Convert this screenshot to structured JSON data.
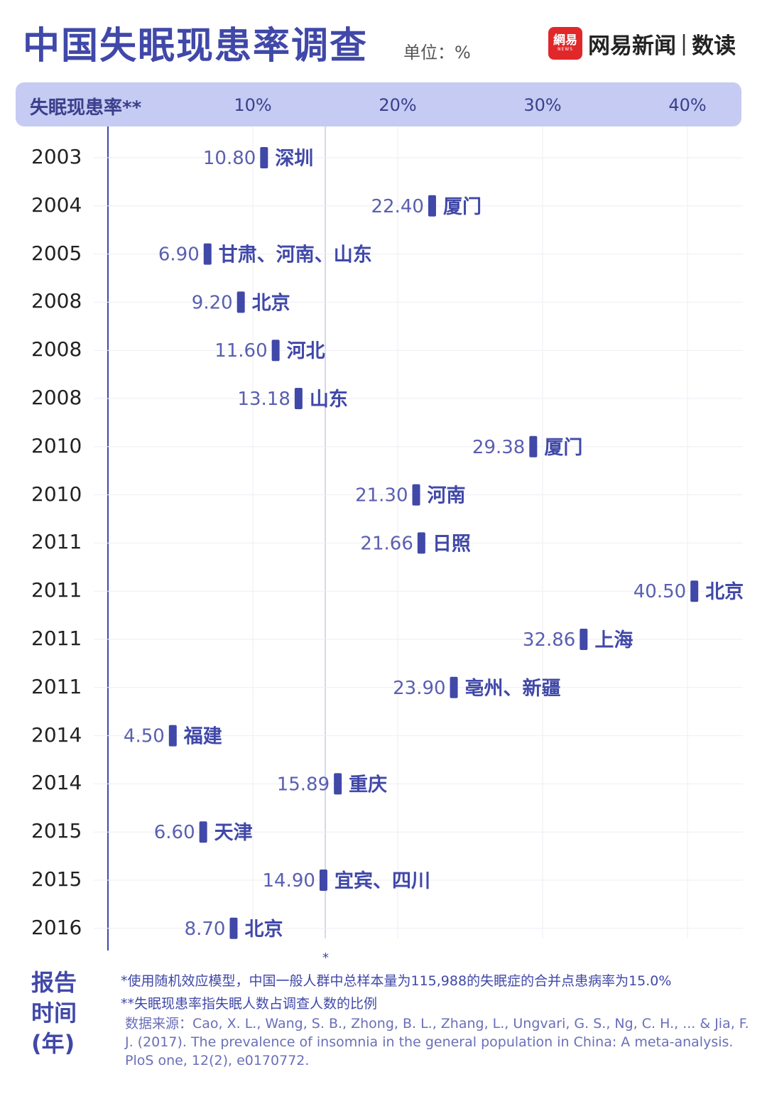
{
  "header": {
    "title": "中国失眠现患率调查",
    "unit": "单位：%",
    "brand_logo_text": "網易",
    "brand_logo_sub": "NEWS",
    "brand_name": "网易新闻",
    "brand_separator": "|",
    "brand_sub": "数读"
  },
  "chart_data": {
    "type": "dot",
    "x_axis_label": "失眠现患率**",
    "x_ticks": [
      "10%",
      "20%",
      "30%",
      "40%"
    ],
    "x_tick_values": [
      10,
      20,
      30,
      40
    ],
    "reference_line": {
      "value": 15.0,
      "marker": "*"
    },
    "y_axis_label": "报告时间（年）",
    "y_axis_label_lines": [
      "报告",
      "时间",
      "(年)"
    ],
    "points": [
      {
        "year": "2003",
        "value": 10.8,
        "value_label": "10.80",
        "region": "深圳"
      },
      {
        "year": "2004",
        "value": 22.4,
        "value_label": "22.40",
        "region": "厦门"
      },
      {
        "year": "2005",
        "value": 6.9,
        "value_label": "6.90",
        "region": "甘肃、河南、山东"
      },
      {
        "year": "2008",
        "value": 9.2,
        "value_label": "9.20",
        "region": "北京"
      },
      {
        "year": "2008",
        "value": 11.6,
        "value_label": "11.60",
        "region": "河北"
      },
      {
        "year": "2008",
        "value": 13.18,
        "value_label": "13.18",
        "region": "山东"
      },
      {
        "year": "2010",
        "value": 29.38,
        "value_label": "29.38",
        "region": "厦门"
      },
      {
        "year": "2010",
        "value": 21.3,
        "value_label": "21.30",
        "region": "河南"
      },
      {
        "year": "2011",
        "value": 21.66,
        "value_label": "21.66",
        "region": "日照"
      },
      {
        "year": "2011",
        "value": 40.5,
        "value_label": "40.50",
        "region": "北京"
      },
      {
        "year": "2011",
        "value": 32.86,
        "value_label": "32.86",
        "region": "上海"
      },
      {
        "year": "2011",
        "value": 23.9,
        "value_label": "23.90",
        "region": "亳州、新疆"
      },
      {
        "year": "2014",
        "value": 4.5,
        "value_label": "4.50",
        "region": "福建"
      },
      {
        "year": "2014",
        "value": 15.89,
        "value_label": "15.89",
        "region": "重庆"
      },
      {
        "year": "2015",
        "value": 6.6,
        "value_label": "6.60",
        "region": "天津"
      },
      {
        "year": "2015",
        "value": 14.9,
        "value_label": "14.90",
        "region": "宜宾、四川"
      },
      {
        "year": "2016",
        "value": 8.7,
        "value_label": "8.70",
        "region": "北京"
      }
    ],
    "colors": {
      "accent": "#4048a8",
      "band": "#c6cbf3",
      "grid": "#eeeef6"
    }
  },
  "notes": {
    "note1": "*使用随机效应模型，中国一般人群中总样本量为115,988的失眠症的合并点患病率为15.0%",
    "note2": "**失眠现患率指失眠人数占调查人数的比例",
    "source": "数据来源：Cao, X. L., Wang, S. B., Zhong, B. L., Zhang, L., Ungvari, G. S., Ng, C. H., ... & Jia, F. J. (2017). The prevalence of insomnia in the general population in China: A meta-analysis. PloS one, 12(2), e0170772."
  }
}
